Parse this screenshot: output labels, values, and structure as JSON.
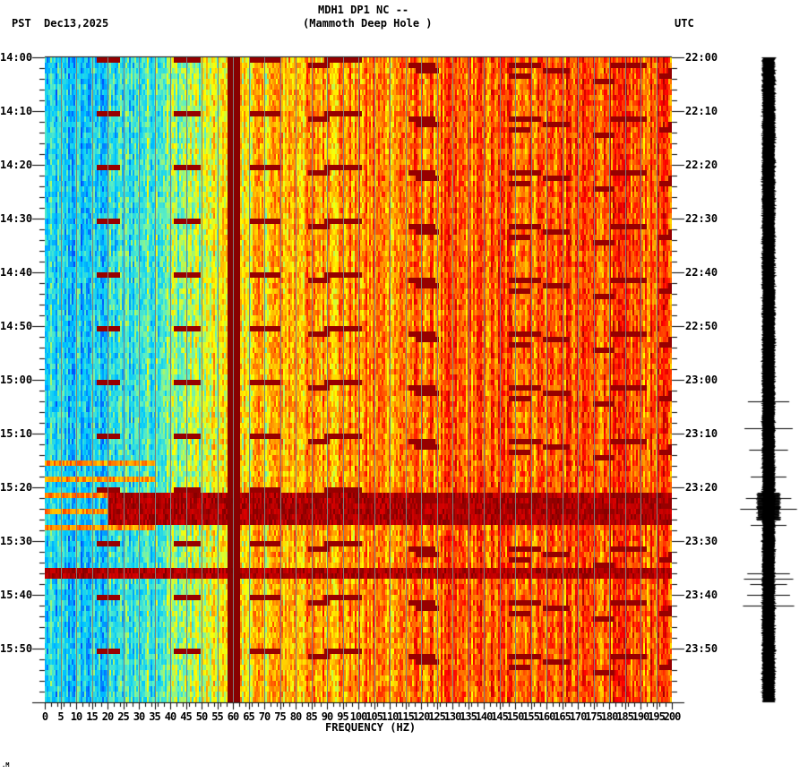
{
  "header": {
    "station_line": "MDH1 DP1 NC --",
    "station_name": "(Mammoth Deep Hole )",
    "left_tz": "PST",
    "date": "Dec13,2025",
    "right_tz": "UTC"
  },
  "footer_mark": ".M",
  "chart_data": {
    "type": "heatmap",
    "title": "MDH1 DP1 NC -- (Mammoth Deep Hole )",
    "xlabel": "FREQUENCY (HZ)",
    "ylabel_left": "PST",
    "ylabel_right": "UTC",
    "xlim": [
      0,
      200
    ],
    "x_ticks": [
      0,
      5,
      10,
      15,
      20,
      25,
      30,
      35,
      40,
      45,
      50,
      55,
      60,
      65,
      70,
      75,
      80,
      85,
      90,
      95,
      100,
      105,
      110,
      115,
      120,
      125,
      130,
      135,
      140,
      145,
      150,
      155,
      160,
      165,
      170,
      175,
      180,
      185,
      190,
      195,
      200
    ],
    "y_ticks_left": [
      "14:00",
      "14:10",
      "14:20",
      "14:30",
      "14:40",
      "14:50",
      "15:00",
      "15:10",
      "15:20",
      "15:30",
      "15:40",
      "15:50"
    ],
    "y_ticks_right": [
      "22:00",
      "22:10",
      "22:20",
      "22:30",
      "22:40",
      "22:50",
      "23:00",
      "23:10",
      "23:20",
      "23:30",
      "23:40",
      "23:50"
    ],
    "time_range_minutes": 120,
    "colormap": [
      "#0050ff",
      "#00c8ff",
      "#60f0c0",
      "#ffff00",
      "#ff8000",
      "#ff0000",
      "#800000"
    ],
    "grid_color": "#808080",
    "grid_every_hz": 5,
    "persistent_lines_hz": [
      60,
      180
    ],
    "sweep_bands": {
      "start_times_minutes": [
        -10,
        0,
        10,
        20,
        30,
        40,
        50,
        60,
        70,
        80,
        90,
        100,
        110
      ],
      "note": "curved high-energy chirps sweeping from low to high frequency roughly every 10 minutes"
    },
    "events": [
      {
        "label": "broadband burst",
        "start_minute": 80.5,
        "end_minute": 86.5,
        "freq_range_hz": [
          20,
          200
        ]
      },
      {
        "label": "broadband line",
        "start_minute": 95,
        "end_minute": 96,
        "freq_range_hz": [
          0,
          200
        ]
      }
    ],
    "seismogram": {
      "position": "right",
      "spikes_minutes": [
        64,
        69,
        73,
        78,
        82,
        84,
        87,
        96,
        97,
        98,
        100,
        102
      ]
    }
  }
}
